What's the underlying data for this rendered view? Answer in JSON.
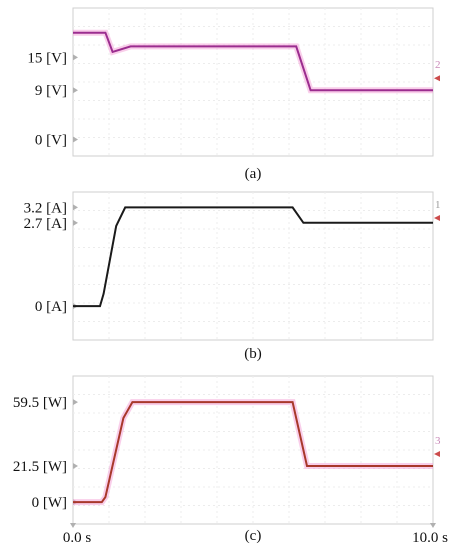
{
  "chart_data": [
    {
      "type": "line",
      "caption": "(a)",
      "x": [
        0,
        0.9,
        1.1,
        1.6,
        6.0,
        6.2,
        6.6,
        10.0
      ],
      "series": [
        {
          "values": [
            19.5,
            19.5,
            16.0,
            17.0,
            17.0,
            17.0,
            9.0,
            9.0
          ],
          "color": "#9b2d8f"
        }
      ],
      "ytick_labels": [
        "15 [V]",
        "9 [V]",
        "0 [V]"
      ],
      "ytick_values": [
        15,
        9,
        0
      ],
      "ylim": [
        -3,
        24
      ],
      "xlim": [
        0,
        10
      ],
      "channel_marker": "2",
      "grid": true
    },
    {
      "type": "line",
      "caption": "(b)",
      "x": [
        0,
        0.75,
        0.85,
        1.2,
        1.45,
        5.9,
        6.1,
        6.4,
        10.0
      ],
      "series": [
        {
          "values": [
            0,
            0,
            0.4,
            2.6,
            3.2,
            3.2,
            3.2,
            2.7,
            2.7
          ],
          "color": "#1a1a1a"
        }
      ],
      "ytick_labels": [
        "3.2 [A]",
        "2.7 [A]",
        "0 [A]"
      ],
      "ytick_values": [
        3.2,
        2.7,
        0
      ],
      "ylim": [
        -1.1,
        3.7
      ],
      "xlim": [
        0,
        10
      ],
      "channel_marker": "1",
      "grid": true
    },
    {
      "type": "line",
      "caption": "(c)",
      "x": [
        0,
        0.8,
        0.9,
        1.4,
        1.65,
        5.9,
        6.1,
        6.5,
        10.0
      ],
      "series": [
        {
          "values": [
            0,
            0,
            3,
            50,
            59.5,
            59.5,
            59.5,
            21.5,
            21.5
          ],
          "color": "#a8382b"
        }
      ],
      "ytick_labels": [
        "59.5 [W]",
        "21.5 [W]",
        "0 [W]"
      ],
      "ytick_values": [
        59.5,
        21.5,
        0
      ],
      "ylim": [
        -13,
        75
      ],
      "xlim": [
        0,
        10
      ],
      "channel_marker": "3",
      "grid": true
    }
  ],
  "x_axis": {
    "start_label": "0.0 s",
    "end_label": "10.0 s"
  },
  "colors": {
    "frame": "#cfcfcf",
    "grid": "#ececec",
    "pink_glow": "#f4a6d8"
  }
}
